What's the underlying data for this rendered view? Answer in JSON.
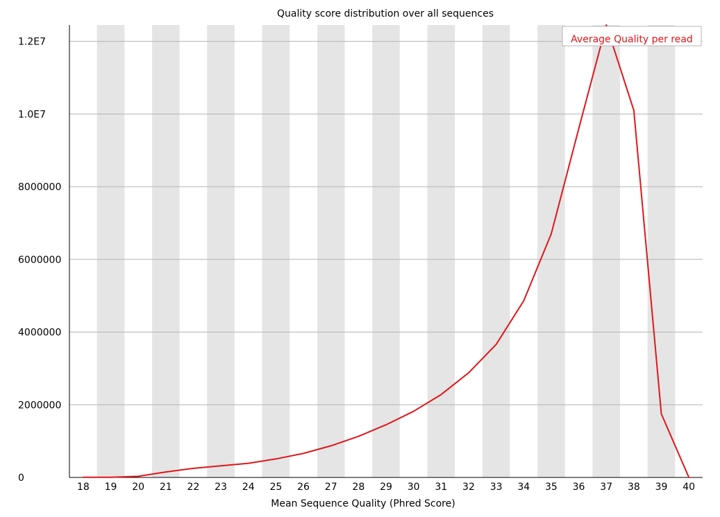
{
  "chart_data": {
    "type": "line",
    "title": "Quality score distribution over all sequences",
    "xlabel": "Mean Sequence Quality (Phred Score)",
    "ylabel": "",
    "x": [
      18,
      19,
      20,
      21,
      22,
      23,
      24,
      25,
      26,
      27,
      28,
      29,
      30,
      31,
      32,
      33,
      34,
      35,
      36,
      37,
      38,
      39,
      40
    ],
    "x_tick_labels": [
      "18",
      "19",
      "20",
      "21",
      "22",
      "23",
      "24",
      "25",
      "26",
      "27",
      "28",
      "29",
      "30",
      "31",
      "32",
      "33",
      "34",
      "35",
      "36",
      "37",
      "38",
      "39",
      "40"
    ],
    "y_ticks": [
      0,
      2000000,
      4000000,
      6000000,
      8000000,
      10000000,
      12000000
    ],
    "y_tick_labels": [
      "0",
      "2000000",
      "4000000",
      "6000000",
      "8000000",
      "1.0E7",
      "1.2E7"
    ],
    "ylim": [
      0,
      12450000
    ],
    "xlim": [
      17.5,
      40.5
    ],
    "grid": "horizontal",
    "band_stripes": true,
    "legend_position": "top-right",
    "series": [
      {
        "name": "Average Quality per read",
        "color": "#e0151a",
        "values": [
          5000,
          5000,
          30000,
          150000,
          250000,
          320000,
          390000,
          510000,
          660000,
          870000,
          1130000,
          1450000,
          1820000,
          2280000,
          2880000,
          3660000,
          4860000,
          6700000,
          9600000,
          12450000,
          10100000,
          1750000,
          0
        ]
      }
    ],
    "colors": {
      "band": "#e5e5e5",
      "grid": "#b4b4b4",
      "axis": "#000000",
      "legend_border": "#b4b4b4"
    }
  }
}
